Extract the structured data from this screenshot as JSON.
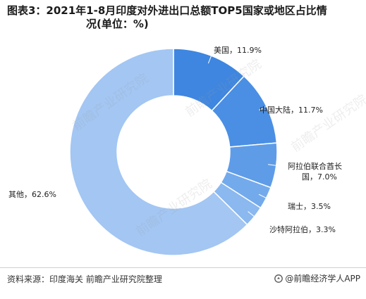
{
  "title_line1": "图表3：2021年1-8月印度对外进出口总额TOP5国家或地区占比情",
  "title_line2": "况(单位：%)",
  "footer": {
    "source": "资料来源：印度海关  前瞻产业研究院整理",
    "brand": "@前瞻经济学人APP"
  },
  "watermark": "前瞻产业研究院",
  "chart_data": {
    "type": "pie",
    "donut": true,
    "unit": "%",
    "title": "图表3：2021年1-8月印度对外进出口总额TOP5国家或地区占比情况(单位：%)",
    "slices": [
      {
        "name": "美国",
        "value": 11.9,
        "color": "#3e86e0",
        "label_lines": [
          "美国，11.9%"
        ]
      },
      {
        "name": "中国大陆",
        "value": 11.7,
        "color": "#4a8fe4",
        "label_lines": [
          "中国大陆，11.7%"
        ]
      },
      {
        "name": "阿拉伯联合酋长国",
        "value": 7.0,
        "color": "#5e9ce8",
        "label_lines": [
          "阿拉伯联合酋长",
          "国，7.0%"
        ]
      },
      {
        "name": "瑞士",
        "value": 3.5,
        "color": "#73aaec",
        "label_lines": [
          "瑞士，3.5%"
        ]
      },
      {
        "name": "沙特阿拉伯",
        "value": 3.3,
        "color": "#8ab8ef",
        "label_lines": [
          "沙特阿拉伯，3.3%"
        ]
      },
      {
        "name": "其他",
        "value": 62.6,
        "color": "#a3c6f3",
        "label_lines": [
          "其他，62.6%"
        ]
      }
    ]
  }
}
